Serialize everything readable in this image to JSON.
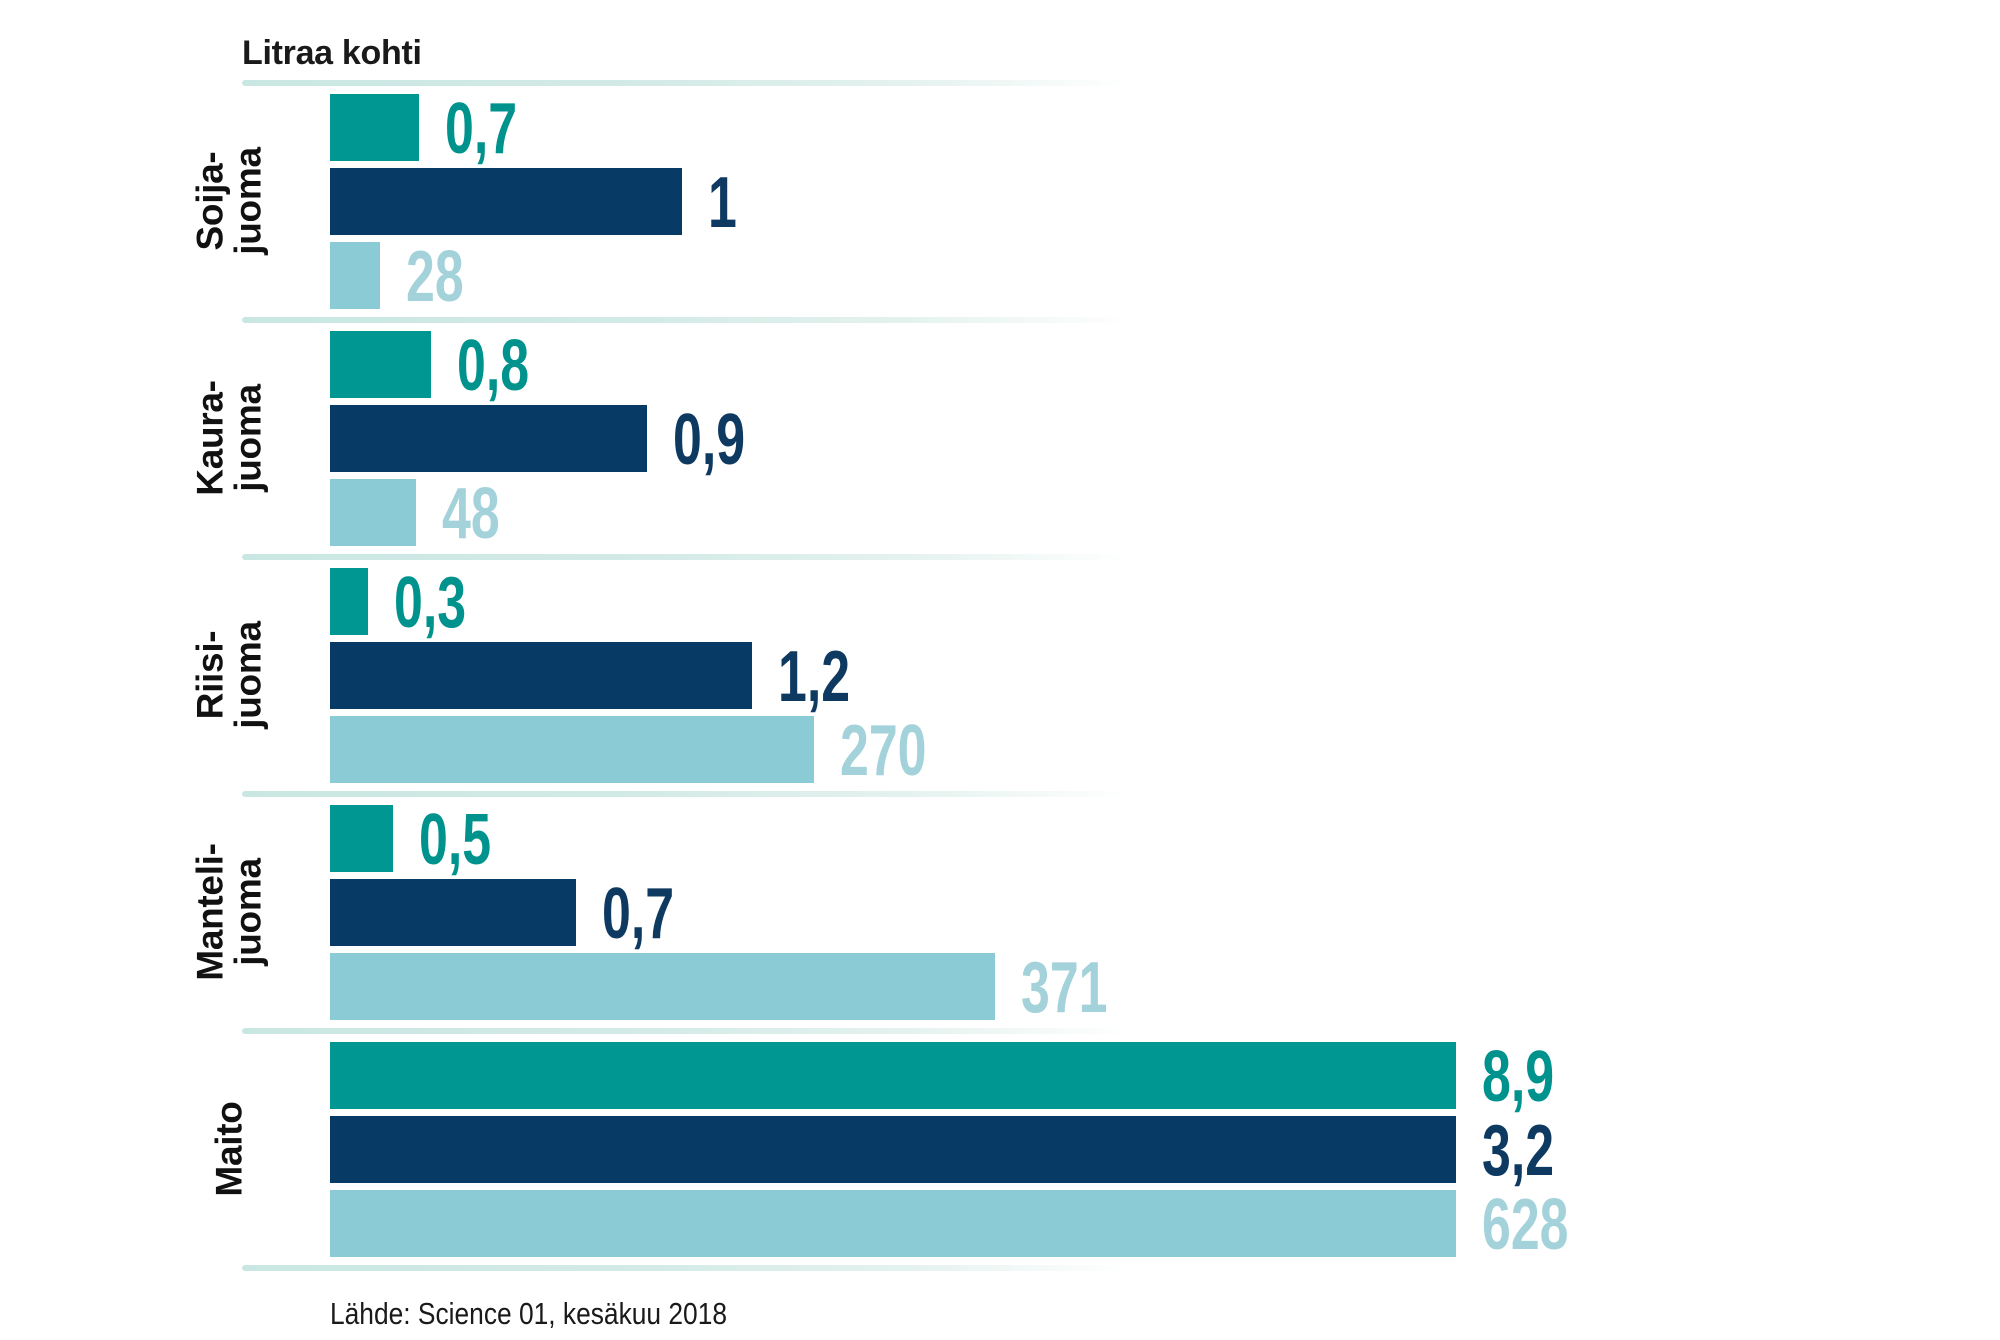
{
  "title": "Litraa kohti",
  "source": "Lähde: Science 01, kesäkuu 2018",
  "colors": {
    "series_teal": "#009691",
    "series_navy": "#073a64",
    "series_light_blue": "#8bcbd5",
    "label_teal": "#00928d",
    "label_navy": "#0e3a62",
    "label_light_blue": "#a3d2da",
    "divider": "#c9e7e2",
    "text": "#1a1a1a"
  },
  "chart_data": {
    "type": "bar",
    "orientation": "horizontal",
    "title": "Litraa kohti",
    "categories": [
      "Soija-juoma",
      "Kaura-juoma",
      "Riisi-juoma",
      "Manteli-juoma",
      "Maito"
    ],
    "category_label_lines": [
      [
        "Soija-",
        "juoma"
      ],
      [
        "Kaura-",
        "juoma"
      ],
      [
        "Riisi-",
        "juoma"
      ],
      [
        "Manteli-",
        "juoma"
      ],
      [
        "Maito"
      ]
    ],
    "series": [
      {
        "name": "teal",
        "color_key": "series_teal",
        "label_color_key": "label_teal",
        "values": [
          0.7,
          0.8,
          0.3,
          0.5,
          8.9
        ],
        "display_labels": [
          "0,7",
          "0,8",
          "0,3",
          "0,5",
          "8,9"
        ],
        "axis_max": 8.9
      },
      {
        "name": "navy",
        "color_key": "series_navy",
        "label_color_key": "label_navy",
        "values": [
          1,
          0.9,
          1.2,
          0.7,
          3.2
        ],
        "display_labels": [
          "1",
          "0,9",
          "1,2",
          "0,7",
          "3,2"
        ],
        "axis_max": 3.2
      },
      {
        "name": "light-blue",
        "color_key": "series_light_blue",
        "label_color_key": "label_light_blue",
        "values": [
          28,
          48,
          270,
          371,
          628
        ],
        "display_labels": [
          "28",
          "48",
          "270",
          "371",
          "628"
        ],
        "axis_max": 628
      }
    ],
    "scaling": "each series independently scaled so its maximum (Maito row) spans the full bar width",
    "value_labels": "shown at end of each bar, colored to match the bar",
    "legend": "none",
    "grid": "off",
    "source": "Lähde: Science 01, kesäkuu 2018"
  }
}
